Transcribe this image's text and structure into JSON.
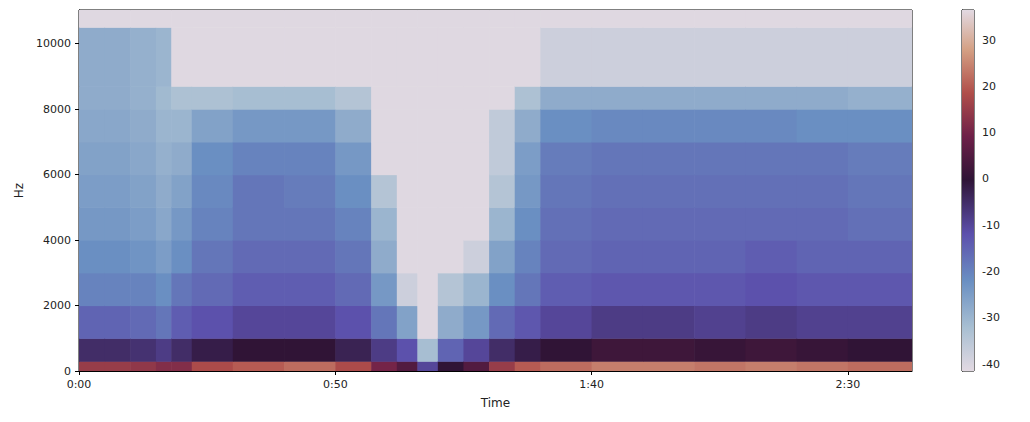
{
  "chart_data": {
    "type": "heatmap",
    "xlabel": "Time",
    "ylabel": "Hz",
    "xlim": [
      0,
      162.5
    ],
    "ylim": [
      0,
      11025
    ],
    "xticks": [
      {
        "value": 0,
        "label": "0:00"
      },
      {
        "value": 50,
        "label": "0:50"
      },
      {
        "value": 100,
        "label": "1:40"
      },
      {
        "value": 150,
        "label": "2:30"
      }
    ],
    "yticks": [
      0,
      2000,
      4000,
      6000,
      8000,
      10000
    ],
    "grid": false,
    "cells": {
      "x_edges": [
        0,
        5,
        10,
        15,
        18,
        22,
        30,
        40,
        50,
        57,
        62,
        66,
        70,
        75,
        80,
        85,
        90,
        100,
        110,
        120,
        130,
        140,
        150,
        162.5
      ],
      "y_edges": [
        0,
        300,
        1000,
        2000,
        3000,
        4000,
        5000,
        6000,
        7000,
        8000,
        8700,
        10500,
        11025
      ],
      "values": [
        [
          15,
          -5,
          -15,
          -20,
          -22,
          -24,
          -25,
          -26,
          -27,
          -28,
          -28,
          -41
        ],
        [
          15,
          -5,
          -15,
          -20,
          -22,
          -24,
          -25,
          -26,
          -27,
          -28,
          -28,
          -41
        ],
        [
          14,
          -6,
          -16,
          -20,
          -23,
          -25,
          -26,
          -27,
          -28,
          -29,
          -29,
          -41
        ],
        [
          12,
          -8,
          -18,
          -22,
          -25,
          -27,
          -28,
          -29,
          -30,
          -31,
          -30,
          -41
        ],
        [
          12,
          -5,
          -14,
          -18,
          -22,
          -24,
          -26,
          -28,
          -30,
          -33,
          -41,
          -41
        ],
        [
          18,
          -2,
          -12,
          -16,
          -18,
          -20,
          -21,
          -22,
          -26,
          -33,
          -41,
          -41
        ],
        [
          20,
          0,
          -10,
          -14,
          -16,
          -18,
          -18,
          -20,
          -24,
          -32,
          -41,
          -41
        ],
        [
          22,
          0,
          -10,
          -14,
          -16,
          -18,
          -19,
          -20,
          -24,
          -32,
          -41,
          -41
        ],
        [
          18,
          -3,
          -12,
          -16,
          -18,
          -20,
          -22,
          -24,
          -28,
          -34,
          -41,
          -41
        ],
        [
          10,
          -8,
          -18,
          -24,
          -28,
          -30,
          -34,
          -41,
          -41,
          -41,
          -41,
          -41
        ],
        [
          5,
          -12,
          -26,
          -38,
          -41,
          -41,
          -41,
          -41,
          -41,
          -41,
          -41,
          -41
        ],
        [
          -10,
          -32,
          -41,
          -41,
          -41,
          -41,
          -41,
          -41,
          -41,
          -41,
          -41,
          -41
        ],
        [
          0,
          -15,
          -28,
          -34,
          -41,
          -41,
          -41,
          -41,
          -41,
          -41,
          -41,
          -41
        ],
        [
          5,
          -10,
          -24,
          -30,
          -38,
          -41,
          -41,
          -41,
          -41,
          -41,
          -41,
          -41
        ],
        [
          15,
          -5,
          -16,
          -22,
          -26,
          -30,
          -34,
          -36,
          -36,
          -41,
          -41,
          -41
        ],
        [
          20,
          -2,
          -13,
          -18,
          -20,
          -22,
          -24,
          -25,
          -28,
          -33,
          -41,
          -41
        ],
        [
          22,
          0,
          -10,
          -14,
          -16,
          -17,
          -18,
          -19,
          -22,
          -28,
          -38,
          -41
        ],
        [
          24,
          2,
          -8,
          -13,
          -15,
          -16,
          -17,
          -18,
          -21,
          -28,
          -38,
          -41
        ],
        [
          24,
          2,
          -8,
          -13,
          -15,
          -16,
          -17,
          -18,
          -21,
          -28,
          -38,
          -41
        ],
        [
          23,
          1,
          -9,
          -13,
          -15,
          -16,
          -17,
          -18,
          -21,
          -28,
          -38,
          -41
        ],
        [
          24,
          2,
          -8,
          -12,
          -14,
          -16,
          -17,
          -18,
          -21,
          -28,
          -38,
          -41
        ],
        [
          23,
          1,
          -9,
          -13,
          -15,
          -16,
          -17,
          -18,
          -22,
          -28,
          -38,
          -41
        ],
        [
          22,
          0,
          -9,
          -13,
          -15,
          -17,
          -18,
          -19,
          -22,
          -29,
          -38,
          -41
        ]
      ]
    },
    "colorbar": {
      "range": [
        -41.5,
        36.5
      ],
      "ticks": [
        -40,
        -30,
        -20,
        -10,
        0,
        10,
        20,
        30
      ]
    }
  }
}
